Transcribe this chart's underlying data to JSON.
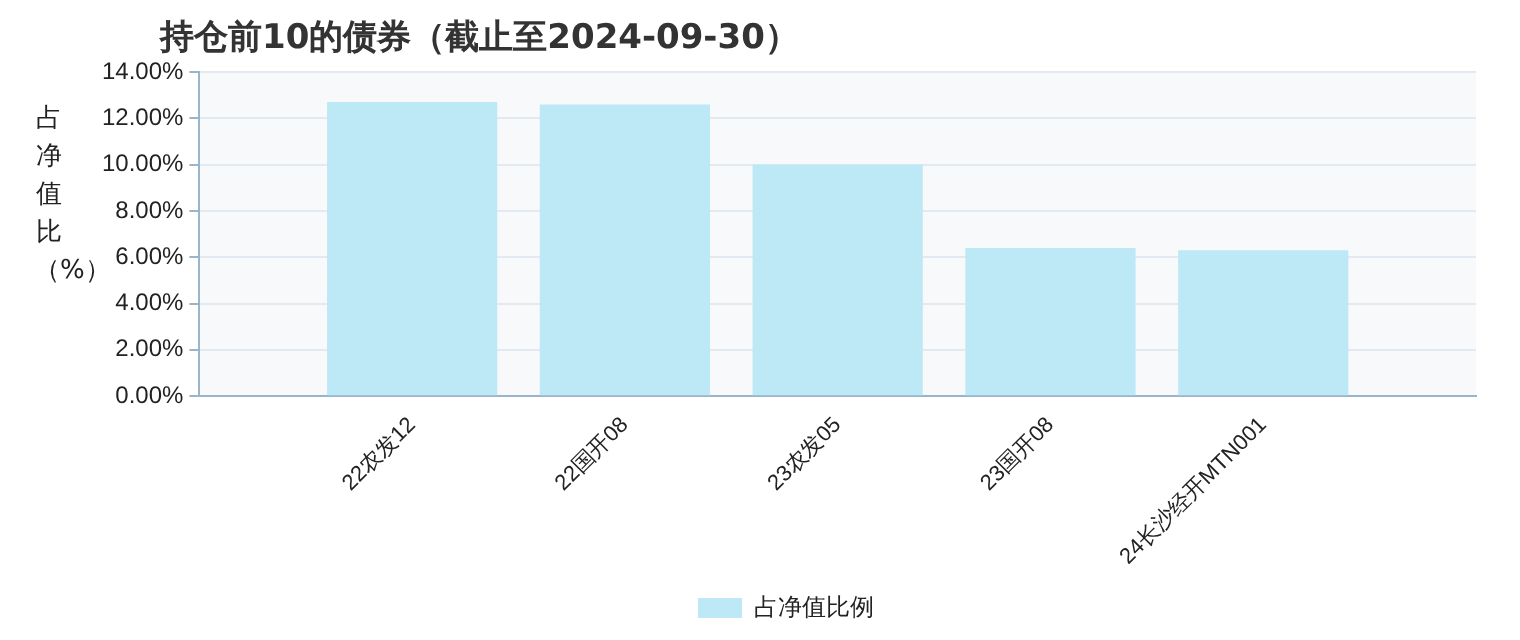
{
  "chart_data": {
    "type": "bar",
    "title": "持仓前10的债券（截止至2024-09-30）",
    "ylabel": "占净值比（%）",
    "categories": [
      "22农发12",
      "22国开08",
      "23农发05",
      "23国开08",
      "24长沙经开MTN001"
    ],
    "series": [
      {
        "name": "占净值比例",
        "color": "#bde8f6",
        "values": [
          12.7,
          12.6,
          10.0,
          6.4,
          6.3
        ]
      }
    ],
    "ylim": [
      0,
      14
    ],
    "yticks": [
      {
        "value": 0,
        "label": "0.00%"
      },
      {
        "value": 2,
        "label": "2.00%"
      },
      {
        "value": 4,
        "label": "4.00%"
      },
      {
        "value": 6,
        "label": "6.00%"
      },
      {
        "value": 8,
        "label": "8.00%"
      },
      {
        "value": 10,
        "label": "10.00%"
      },
      {
        "value": 12,
        "label": "12.00%"
      },
      {
        "value": 14,
        "label": "14.00%"
      }
    ],
    "grid": "y",
    "legend": "bottom"
  }
}
